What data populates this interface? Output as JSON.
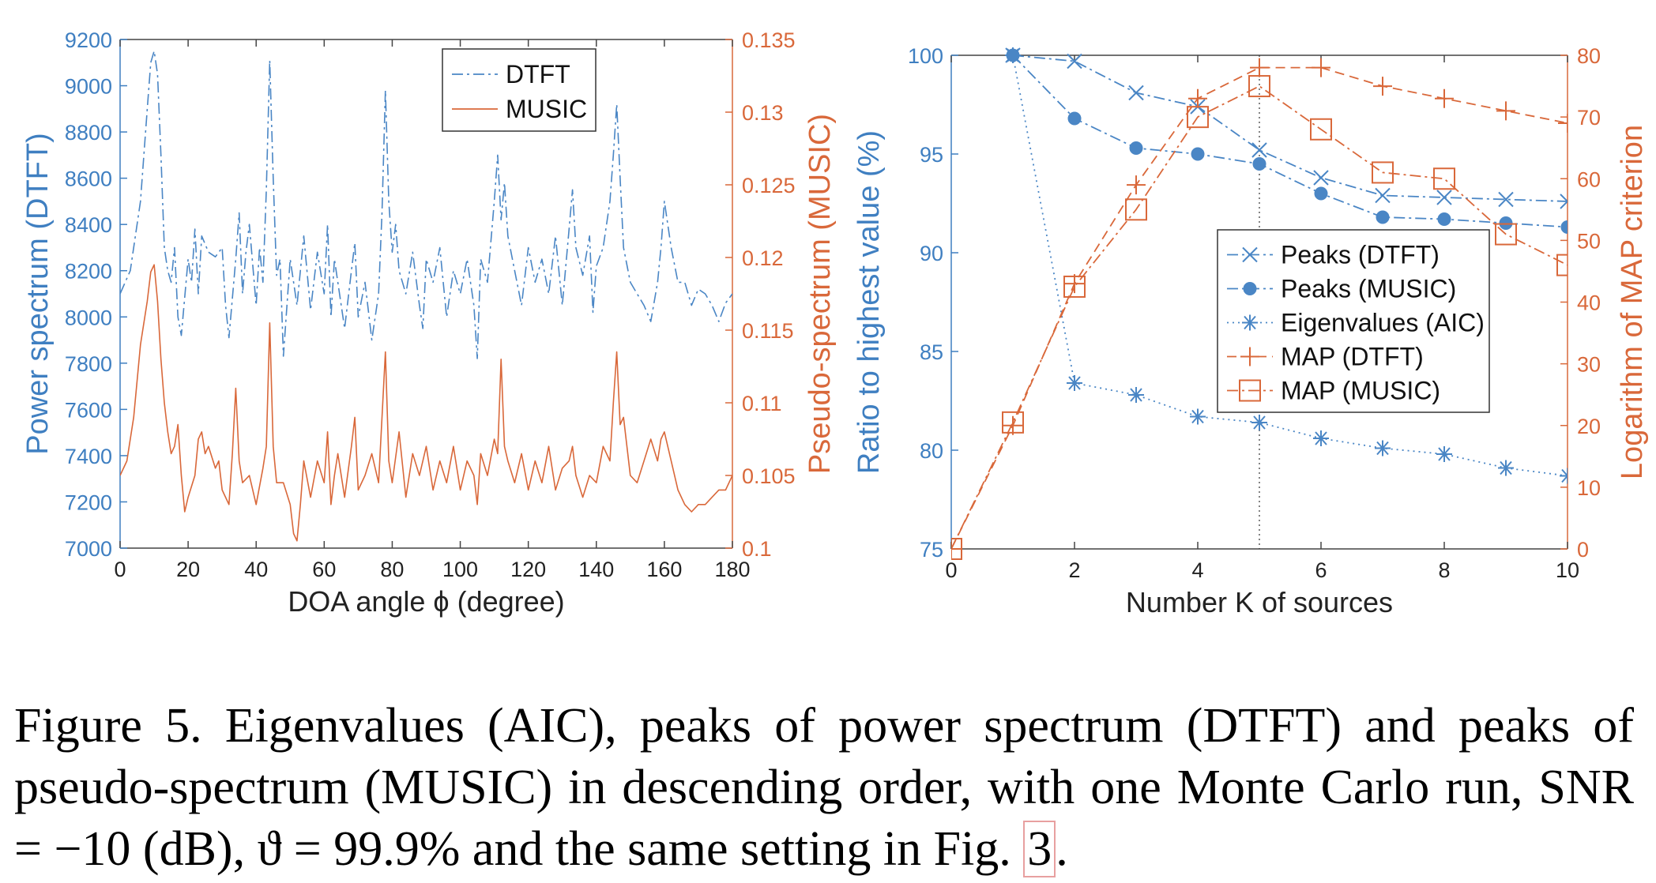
{
  "chart_data": [
    {
      "type": "line",
      "xlabel": "DOA angle ϕ (degree)",
      "ylabel_left": "Power spectrum (DTFT)",
      "ylabel_right": "Pseudo-spectrum (MUSIC)",
      "xlim": [
        0,
        180
      ],
      "ylim_left": [
        7000,
        9200
      ],
      "ylim_right": [
        0.1,
        0.135
      ],
      "xticks": [
        0,
        20,
        40,
        60,
        80,
        100,
        120,
        140,
        160,
        180
      ],
      "yticks_left": [
        7000,
        7200,
        7400,
        7600,
        7800,
        8000,
        8200,
        8400,
        8600,
        8800,
        9000,
        9200
      ],
      "yticks_right": [
        0.1,
        0.105,
        0.11,
        0.115,
        0.12,
        0.125,
        0.13,
        0.135
      ],
      "legend_position": "top-center",
      "series": [
        {
          "name": "DTFT",
          "axis": "left",
          "color": "#4a86c5",
          "style": "dash-dot",
          "x": [
            0,
            3,
            6,
            8,
            9,
            10,
            11,
            12,
            13,
            14,
            15,
            16,
            17,
            18,
            20,
            21,
            22,
            23,
            24,
            26,
            28,
            30,
            31,
            32,
            34,
            35,
            36,
            37,
            38,
            40,
            41,
            42,
            43,
            44,
            45,
            46,
            47,
            48,
            50,
            52,
            53,
            54,
            56,
            58,
            60,
            61,
            62,
            63,
            64,
            66,
            68,
            69,
            70,
            72,
            74,
            76,
            77,
            78,
            79,
            80,
            81,
            82,
            84,
            86,
            88,
            89,
            90,
            92,
            94,
            96,
            98,
            100,
            102,
            104,
            105,
            106,
            108,
            110,
            111,
            112,
            113,
            114,
            116,
            118,
            120,
            122,
            124,
            126,
            128,
            130,
            132,
            133,
            134,
            136,
            138,
            139,
            140,
            142,
            144,
            145,
            146,
            147,
            148,
            150,
            152,
            154,
            156,
            158,
            159,
            160,
            162,
            164,
            166,
            168,
            170,
            172,
            174,
            176,
            178,
            180
          ],
          "y": [
            8100,
            8200,
            8500,
            8900,
            9100,
            9150,
            9050,
            8700,
            8300,
            8200,
            8150,
            8300,
            8000,
            7920,
            8250,
            8150,
            8380,
            8100,
            8350,
            8280,
            8260,
            8300,
            8050,
            7910,
            8250,
            8450,
            8100,
            8280,
            8400,
            8050,
            8300,
            8150,
            8550,
            9110,
            8600,
            8180,
            8250,
            7830,
            8250,
            8050,
            8200,
            8350,
            8030,
            8280,
            8100,
            8400,
            8000,
            8250,
            8150,
            7950,
            8200,
            8320,
            8000,
            8150,
            7900,
            8100,
            8450,
            8980,
            8500,
            8280,
            8400,
            8200,
            8100,
            8280,
            8050,
            7950,
            8250,
            8150,
            8300,
            8000,
            8200,
            8100,
            8250,
            8050,
            7820,
            8250,
            8150,
            8500,
            8700,
            8420,
            8580,
            8350,
            8200,
            8050,
            8300,
            8150,
            8250,
            8100,
            8350,
            8050,
            8380,
            8550,
            8300,
            8180,
            8350,
            8020,
            8220,
            8300,
            8500,
            8700,
            8920,
            8600,
            8300,
            8150,
            8100,
            8050,
            7980,
            8150,
            8300,
            8500,
            8300,
            8150,
            8150,
            8050,
            8120,
            8100,
            8050,
            7980,
            8060,
            8100
          ]
        },
        {
          "name": "MUSIC",
          "axis": "right",
          "color": "#d9683a",
          "style": "solid",
          "x": [
            0,
            2,
            4,
            6,
            8,
            9,
            10,
            11,
            12,
            13,
            14,
            15,
            16,
            17,
            18,
            19,
            20,
            22,
            23,
            24,
            25,
            26,
            28,
            29,
            30,
            32,
            33,
            34,
            35,
            36,
            38,
            40,
            42,
            43,
            44,
            45,
            46,
            48,
            50,
            51,
            52,
            53,
            54,
            56,
            58,
            60,
            61,
            62,
            63,
            64,
            66,
            68,
            69,
            70,
            72,
            74,
            76,
            77,
            78,
            79,
            80,
            82,
            84,
            86,
            88,
            90,
            92,
            94,
            96,
            98,
            100,
            102,
            104,
            105,
            106,
            108,
            110,
            111,
            112,
            113,
            114,
            116,
            118,
            120,
            122,
            124,
            126,
            128,
            130,
            132,
            133,
            134,
            136,
            138,
            140,
            142,
            144,
            145,
            146,
            147,
            148,
            150,
            152,
            154,
            156,
            158,
            159,
            160,
            162,
            164,
            166,
            168,
            170,
            172,
            174,
            176,
            178,
            180
          ],
          "y": [
            0.105,
            0.106,
            0.109,
            0.114,
            0.117,
            0.119,
            0.1195,
            0.117,
            0.113,
            0.11,
            0.108,
            0.1065,
            0.107,
            0.1085,
            0.105,
            0.1025,
            0.1035,
            0.105,
            0.1075,
            0.108,
            0.1065,
            0.107,
            0.1055,
            0.106,
            0.104,
            0.103,
            0.1065,
            0.111,
            0.106,
            0.1045,
            0.105,
            0.103,
            0.1055,
            0.107,
            0.1155,
            0.107,
            0.1045,
            0.1045,
            0.103,
            0.101,
            0.1005,
            0.103,
            0.106,
            0.1035,
            0.106,
            0.1045,
            0.108,
            0.103,
            0.105,
            0.1065,
            0.1035,
            0.107,
            0.109,
            0.104,
            0.105,
            0.1065,
            0.1045,
            0.109,
            0.1135,
            0.106,
            0.1045,
            0.108,
            0.1035,
            0.1065,
            0.105,
            0.107,
            0.104,
            0.106,
            0.1045,
            0.107,
            0.104,
            0.106,
            0.105,
            0.103,
            0.1065,
            0.105,
            0.1075,
            0.1065,
            0.113,
            0.107,
            0.106,
            0.1045,
            0.1065,
            0.104,
            0.106,
            0.1045,
            0.107,
            0.104,
            0.1055,
            0.106,
            0.107,
            0.105,
            0.1035,
            0.105,
            0.1045,
            0.107,
            0.106,
            0.11,
            0.1135,
            0.1085,
            0.109,
            0.105,
            0.1045,
            0.106,
            0.1075,
            0.106,
            0.1075,
            0.108,
            0.106,
            0.104,
            0.103,
            0.1025,
            0.103,
            0.103,
            0.1035,
            0.104,
            0.104,
            0.105
          ]
        }
      ]
    },
    {
      "type": "line",
      "xlabel": "Number K of sources",
      "ylabel_left": "Ratio to highest value (%)",
      "ylabel_right": "Logarithm of MAP criterion",
      "xlim": [
        0,
        10
      ],
      "ylim_left": [
        75,
        100
      ],
      "ylim_right": [
        0,
        80
      ],
      "xticks": [
        0,
        2,
        4,
        6,
        8,
        10
      ],
      "yticks_left": [
        75,
        80,
        85,
        90,
        95,
        100
      ],
      "yticks_right": [
        0,
        10,
        20,
        30,
        40,
        50,
        60,
        70,
        80
      ],
      "legend_position": "center-right",
      "vline_x": 5,
      "series": [
        {
          "name": "Peaks (DTFT)",
          "axis": "left",
          "color": "#4a86c5",
          "style": "dash-dot",
          "marker": "x",
          "x": [
            1,
            2,
            3,
            4,
            5,
            6,
            7,
            8,
            9,
            10
          ],
          "y": [
            100,
            99.7,
            98.1,
            97.4,
            95.2,
            93.8,
            92.9,
            92.8,
            92.7,
            92.6
          ]
        },
        {
          "name": "Peaks (MUSIC)",
          "axis": "left",
          "color": "#4a86c5",
          "style": "dash-dot",
          "marker": "dot",
          "x": [
            1,
            2,
            3,
            4,
            5,
            6,
            7,
            8,
            9,
            10
          ],
          "y": [
            100,
            96.8,
            95.3,
            95.0,
            94.5,
            93.0,
            91.8,
            91.7,
            91.5,
            91.3
          ]
        },
        {
          "name": "Eigenvalues (AIC)",
          "axis": "left",
          "color": "#4a86c5",
          "style": "dotted",
          "marker": "asterisk",
          "x": [
            1,
            2,
            3,
            4,
            5,
            6,
            7,
            8,
            9,
            10
          ],
          "y": [
            100,
            83.4,
            82.8,
            81.7,
            81.4,
            80.6,
            80.1,
            79.8,
            79.1,
            78.7
          ]
        },
        {
          "name": "MAP (DTFT)",
          "axis": "right",
          "color": "#d9683a",
          "style": "dashed",
          "marker": "plus",
          "x": [
            0,
            1,
            2,
            3,
            4,
            5,
            6,
            7,
            8,
            9,
            10
          ],
          "y": [
            0,
            20,
            43,
            59,
            73,
            78,
            78,
            75,
            73,
            71,
            69
          ]
        },
        {
          "name": "MAP (MUSIC)",
          "axis": "right",
          "color": "#d9683a",
          "style": "dash-dot",
          "marker": "square",
          "x": [
            0,
            1,
            2,
            3,
            4,
            5,
            6,
            7,
            8,
            9,
            10
          ],
          "y": [
            0,
            20.5,
            42.5,
            55,
            70,
            75,
            68,
            61,
            60,
            51,
            46
          ]
        }
      ]
    }
  ],
  "caption": {
    "before": "Figure 5. Eigenvalues (AIC), peaks of power spectrum (DTFT) and peaks of pseudo-spectrum (MUSIC) in descending order, with one Monte Carlo run, SNR = −10 (dB), ϑ = 99.9% and the same setting in Fig. ",
    "ref": "3",
    "after": "."
  }
}
